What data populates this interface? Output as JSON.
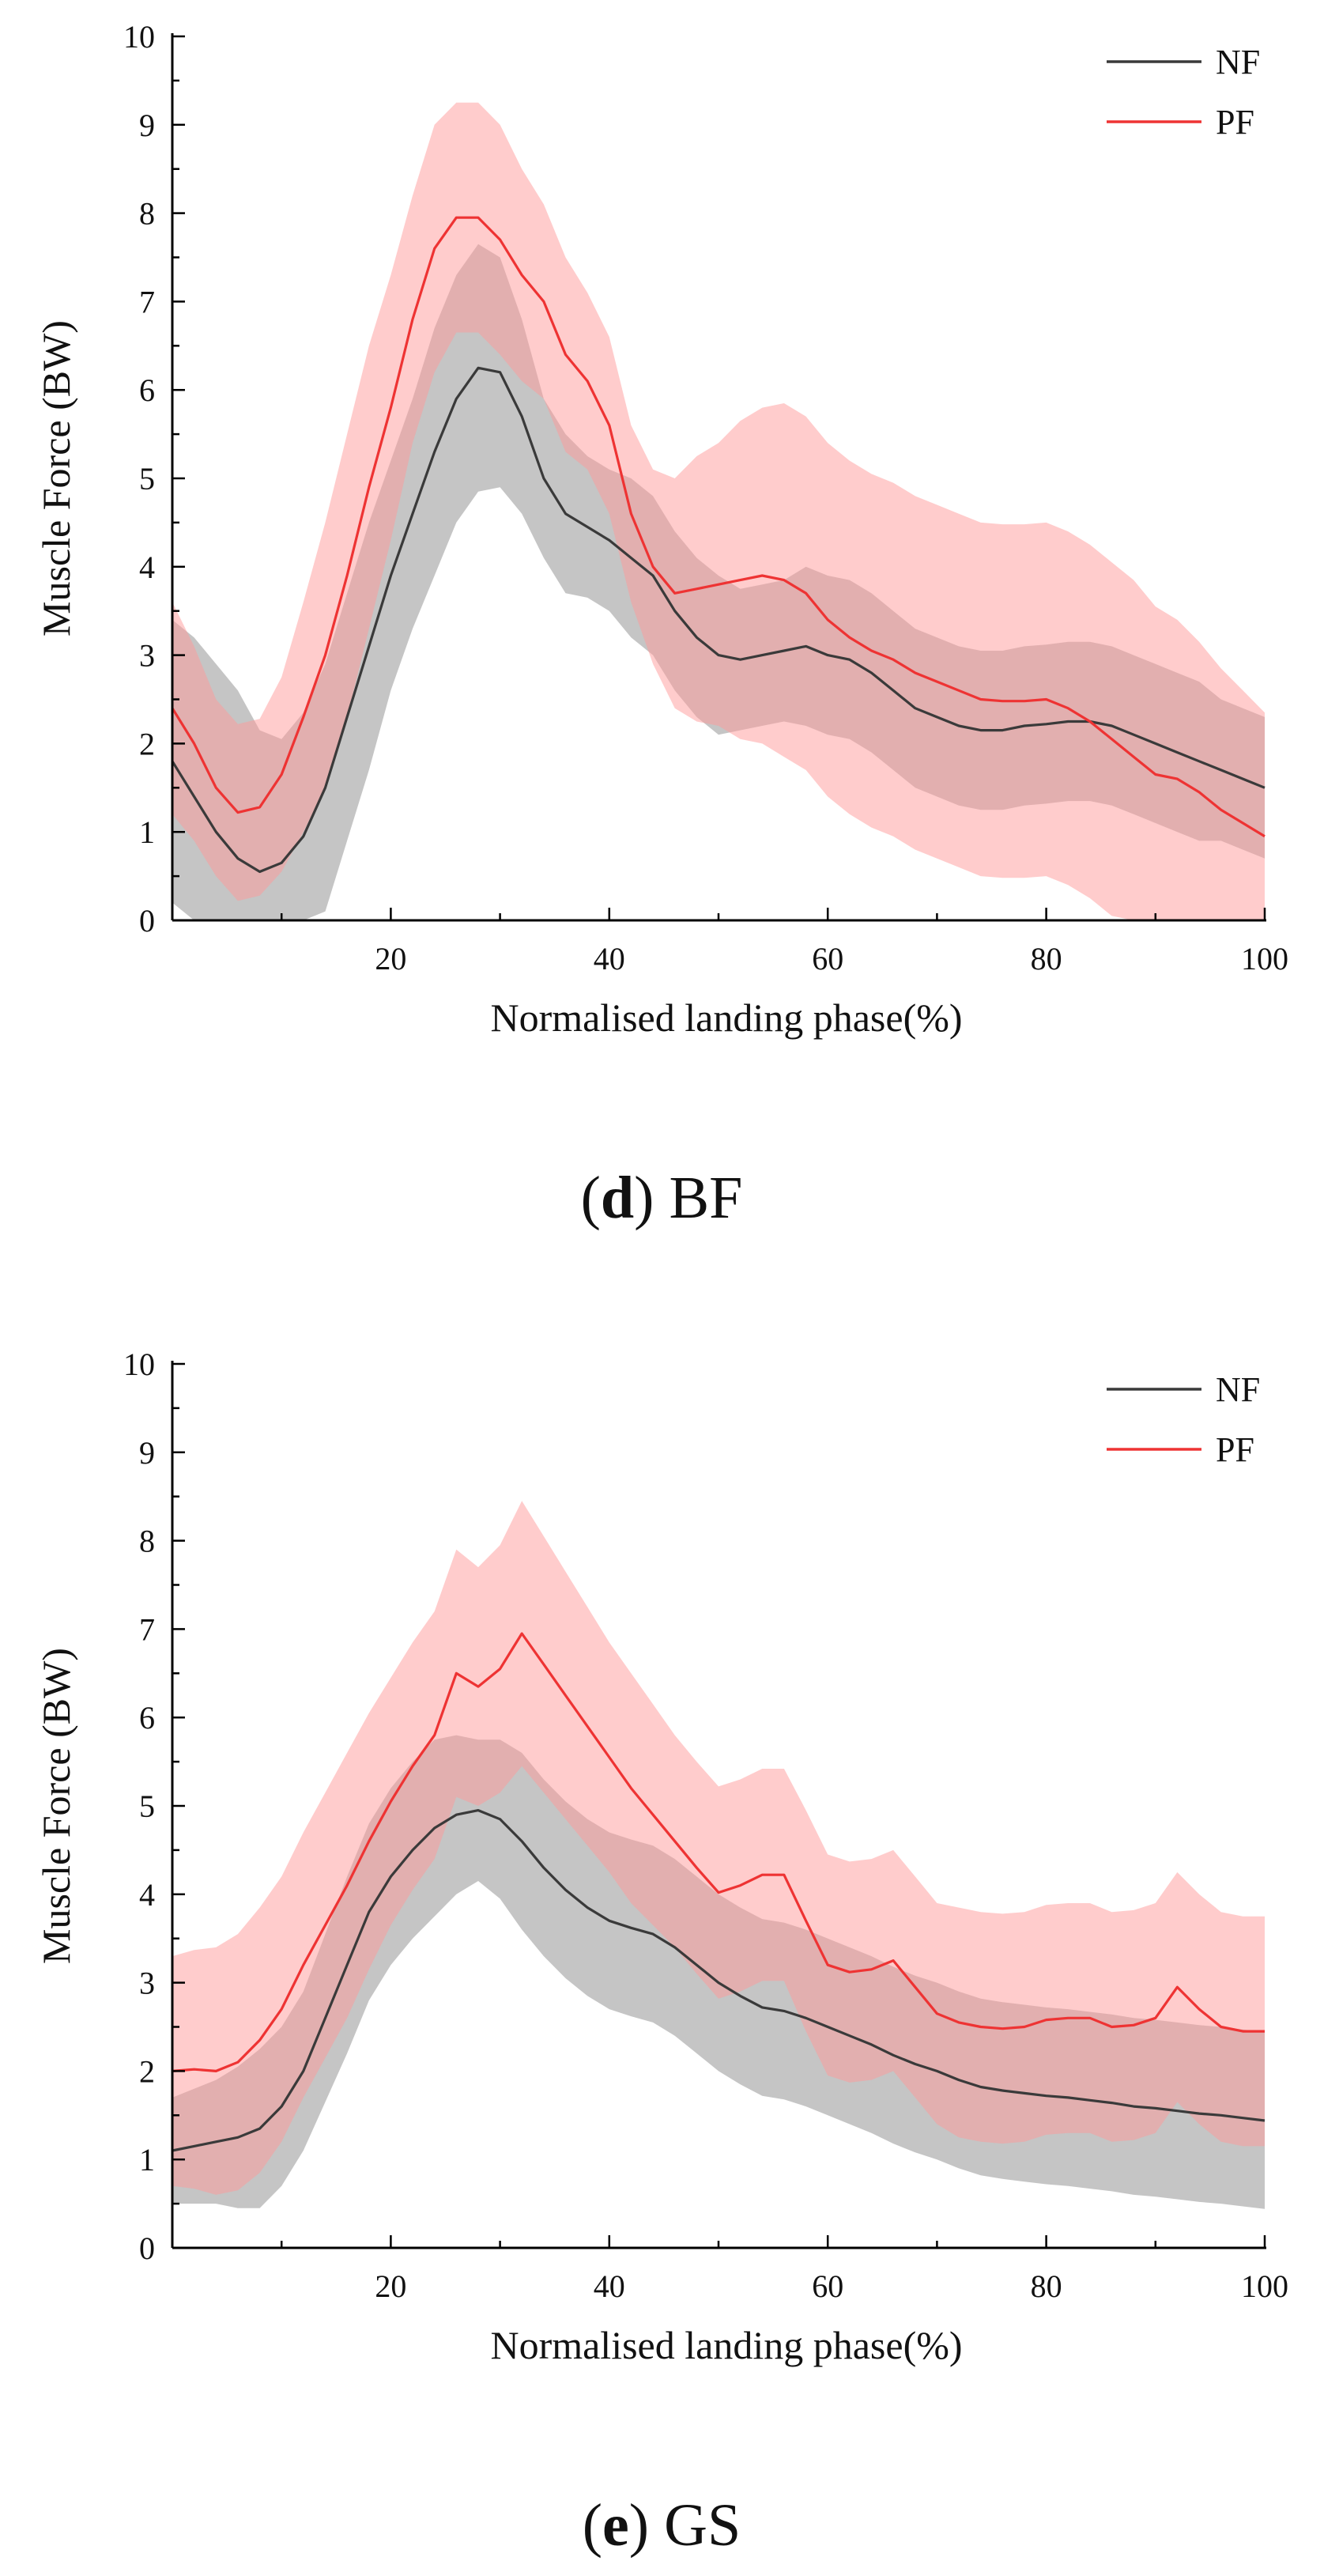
{
  "chart_data": [
    {
      "type": "line",
      "panel_letter": "d",
      "muscle": "BF",
      "xlabel": "Normalised landing phase(%)",
      "ylabel": "Muscle Force (BW)",
      "xlim": [
        0,
        100
      ],
      "ylim": [
        0,
        10
      ],
      "xticks": [
        20,
        40,
        60,
        80,
        100
      ],
      "yticks": [
        0,
        1,
        2,
        3,
        4,
        5,
        6,
        7,
        8,
        9,
        10
      ],
      "legend_position": "top-right",
      "x": [
        0,
        2,
        4,
        6,
        8,
        10,
        12,
        14,
        16,
        18,
        20,
        22,
        24,
        26,
        28,
        30,
        32,
        34,
        36,
        38,
        40,
        42,
        44,
        46,
        48,
        50,
        52,
        54,
        56,
        58,
        60,
        62,
        64,
        66,
        68,
        70,
        72,
        74,
        76,
        78,
        80,
        82,
        84,
        86,
        88,
        90,
        92,
        94,
        96,
        98,
        100
      ],
      "series": [
        {
          "name": "NF",
          "color": "#3a3a3a",
          "band_color": "#a9a9a9",
          "mean": [
            1.8,
            1.4,
            1.0,
            0.7,
            0.55,
            0.65,
            0.95,
            1.5,
            2.3,
            3.1,
            3.9,
            4.6,
            5.3,
            5.9,
            6.25,
            6.2,
            5.7,
            5.0,
            4.6,
            4.45,
            4.3,
            4.1,
            3.9,
            3.5,
            3.2,
            3.0,
            2.95,
            3.0,
            3.05,
            3.1,
            3.0,
            2.95,
            2.8,
            2.6,
            2.4,
            2.3,
            2.2,
            2.15,
            2.15,
            2.2,
            2.22,
            2.25,
            2.25,
            2.2,
            2.1,
            2.0,
            1.9,
            1.8,
            1.7,
            1.6,
            1.5
          ],
          "sd": [
            1.6,
            1.8,
            1.9,
            1.9,
            1.6,
            1.4,
            1.4,
            1.4,
            1.4,
            1.4,
            1.3,
            1.3,
            1.4,
            1.4,
            1.4,
            1.3,
            1.1,
            0.9,
            0.9,
            0.8,
            0.8,
            0.9,
            0.9,
            0.9,
            0.9,
            0.9,
            0.8,
            0.8,
            0.8,
            0.9,
            0.9,
            0.9,
            0.9,
            0.9,
            0.9,
            0.9,
            0.9,
            0.9,
            0.9,
            0.9,
            0.9,
            0.9,
            0.9,
            0.9,
            0.9,
            0.9,
            0.9,
            0.9,
            0.8,
            0.8,
            0.8
          ]
        },
        {
          "name": "PF",
          "color": "#ee3333",
          "band_color": "#ff9999",
          "mean": [
            2.4,
            2.0,
            1.5,
            1.22,
            1.28,
            1.65,
            2.3,
            3.0,
            3.9,
            4.9,
            5.8,
            6.8,
            7.6,
            7.95,
            7.95,
            7.7,
            7.3,
            7.0,
            6.4,
            6.1,
            5.6,
            4.6,
            4.0,
            3.7,
            3.75,
            3.8,
            3.85,
            3.9,
            3.85,
            3.7,
            3.4,
            3.2,
            3.05,
            2.95,
            2.8,
            2.7,
            2.6,
            2.5,
            2.48,
            2.48,
            2.5,
            2.4,
            2.25,
            2.05,
            1.85,
            1.65,
            1.6,
            1.45,
            1.25,
            1.1,
            0.95
          ],
          "sd": [
            1.2,
            1.1,
            1.0,
            1.0,
            1.0,
            1.1,
            1.3,
            1.5,
            1.6,
            1.6,
            1.5,
            1.4,
            1.4,
            1.3,
            1.3,
            1.3,
            1.2,
            1.1,
            1.1,
            1.0,
            1.0,
            1.0,
            1.1,
            1.3,
            1.5,
            1.6,
            1.8,
            1.9,
            2.0,
            2.0,
            2.0,
            2.0,
            2.0,
            2.0,
            2.0,
            2.0,
            2.0,
            2.0,
            2.0,
            2.0,
            2.0,
            2.0,
            2.0,
            2.0,
            2.0,
            1.9,
            1.8,
            1.7,
            1.6,
            1.5,
            1.4
          ]
        }
      ]
    },
    {
      "type": "line",
      "panel_letter": "e",
      "muscle": "GS",
      "xlabel": "Normalised landing phase(%)",
      "ylabel": "Muscle Force (BW)",
      "xlim": [
        0,
        100
      ],
      "ylim": [
        0,
        10
      ],
      "xticks": [
        20,
        40,
        60,
        80,
        100
      ],
      "yticks": [
        0,
        1,
        2,
        3,
        4,
        5,
        6,
        7,
        8,
        9,
        10
      ],
      "legend_position": "top-right",
      "x": [
        0,
        2,
        4,
        6,
        8,
        10,
        12,
        14,
        16,
        18,
        20,
        22,
        24,
        26,
        28,
        30,
        32,
        34,
        36,
        38,
        40,
        42,
        44,
        46,
        48,
        50,
        52,
        54,
        56,
        58,
        60,
        62,
        64,
        66,
        68,
        70,
        72,
        74,
        76,
        78,
        80,
        82,
        84,
        86,
        88,
        90,
        92,
        94,
        96,
        98,
        100
      ],
      "series": [
        {
          "name": "NF",
          "color": "#3a3a3a",
          "band_color": "#a9a9a9",
          "mean": [
            1.1,
            1.15,
            1.2,
            1.25,
            1.35,
            1.6,
            2.0,
            2.6,
            3.2,
            3.8,
            4.2,
            4.5,
            4.75,
            4.9,
            4.95,
            4.85,
            4.6,
            4.3,
            4.05,
            3.85,
            3.7,
            3.62,
            3.55,
            3.4,
            3.2,
            3.0,
            2.85,
            2.72,
            2.68,
            2.6,
            2.5,
            2.4,
            2.3,
            2.18,
            2.08,
            2.0,
            1.9,
            1.82,
            1.78,
            1.75,
            1.72,
            1.7,
            1.67,
            1.64,
            1.6,
            1.58,
            1.55,
            1.52,
            1.5,
            1.47,
            1.44
          ],
          "sd": [
            0.6,
            0.65,
            0.7,
            0.8,
            0.9,
            0.9,
            0.9,
            0.95,
            1.0,
            1.0,
            1.0,
            1.0,
            1.0,
            0.9,
            0.8,
            0.9,
            1.0,
            1.0,
            1.0,
            1.0,
            1.0,
            1.0,
            1.0,
            1.0,
            1.0,
            1.0,
            1.0,
            1.0,
            1.0,
            1.0,
            1.0,
            1.0,
            1.0,
            1.0,
            1.0,
            1.0,
            1.0,
            1.0,
            1.0,
            1.0,
            1.0,
            1.0,
            1.0,
            1.0,
            1.0,
            1.0,
            1.0,
            1.0,
            1.0,
            1.0,
            1.0
          ]
        },
        {
          "name": "PF",
          "color": "#ee3333",
          "band_color": "#ff9999",
          "mean": [
            2.0,
            2.02,
            2.0,
            2.1,
            2.35,
            2.7,
            3.2,
            3.65,
            4.1,
            4.6,
            5.05,
            5.45,
            5.8,
            6.5,
            6.35,
            6.55,
            6.95,
            6.6,
            6.25,
            5.9,
            5.55,
            5.2,
            4.9,
            4.6,
            4.3,
            4.02,
            4.1,
            4.22,
            4.22,
            3.7,
            3.2,
            3.12,
            3.15,
            3.25,
            2.95,
            2.65,
            2.55,
            2.5,
            2.48,
            2.5,
            2.58,
            2.6,
            2.6,
            2.5,
            2.52,
            2.6,
            2.95,
            2.7,
            2.5,
            2.45,
            2.45
          ],
          "sd": [
            1.3,
            1.35,
            1.4,
            1.45,
            1.5,
            1.5,
            1.5,
            1.5,
            1.5,
            1.45,
            1.4,
            1.4,
            1.4,
            1.4,
            1.35,
            1.4,
            1.5,
            1.45,
            1.4,
            1.35,
            1.3,
            1.3,
            1.25,
            1.2,
            1.2,
            1.2,
            1.2,
            1.2,
            1.2,
            1.25,
            1.25,
            1.25,
            1.25,
            1.25,
            1.25,
            1.25,
            1.3,
            1.3,
            1.3,
            1.3,
            1.3,
            1.3,
            1.3,
            1.3,
            1.3,
            1.3,
            1.3,
            1.3,
            1.3,
            1.3,
            1.3
          ]
        }
      ]
    }
  ]
}
